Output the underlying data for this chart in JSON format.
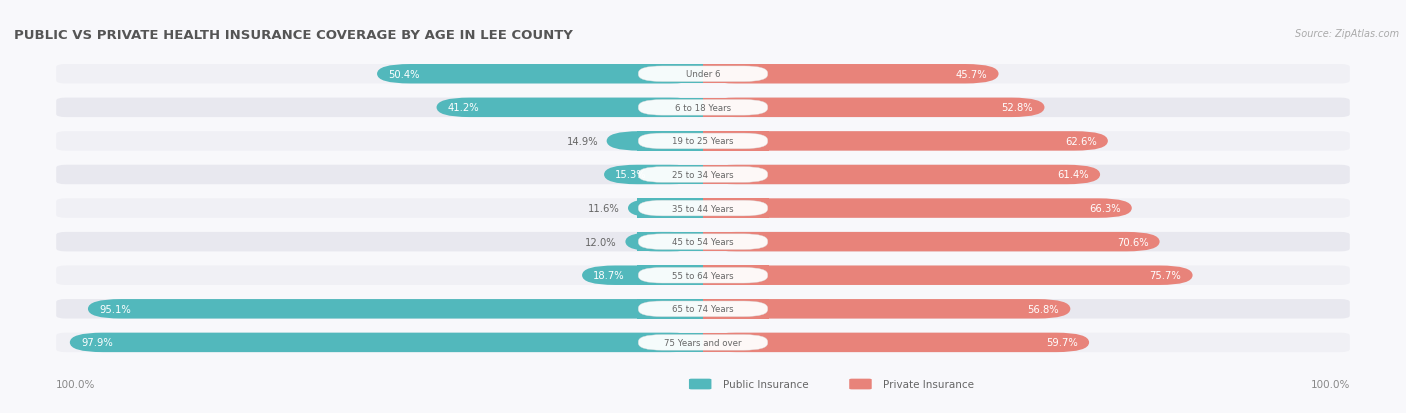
{
  "title": "PUBLIC VS PRIVATE HEALTH INSURANCE COVERAGE BY AGE IN LEE COUNTY",
  "source": "Source: ZipAtlas.com",
  "categories": [
    "Under 6",
    "6 to 18 Years",
    "19 to 25 Years",
    "25 to 34 Years",
    "35 to 44 Years",
    "45 to 54 Years",
    "55 to 64 Years",
    "65 to 74 Years",
    "75 Years and over"
  ],
  "public_values": [
    50.4,
    41.2,
    14.9,
    15.3,
    11.6,
    12.0,
    18.7,
    95.1,
    97.9
  ],
  "private_values": [
    45.7,
    52.8,
    62.6,
    61.4,
    66.3,
    70.6,
    75.7,
    56.8,
    59.7
  ],
  "public_color": "#52b8bc",
  "private_color": "#e8837a",
  "title_color": "#555555",
  "source_color": "#aaaaaa",
  "footer_label_color": "#888888",
  "max_value": 100.0,
  "legend_public": "Public Insurance",
  "legend_private": "Private Insurance",
  "bg_colors": [
    "#f0f0f5",
    "#e8e8ef",
    "#f0f0f5",
    "#e8e8ef",
    "#f0f0f5",
    "#e8e8ef",
    "#f0f0f5",
    "#e8e8ef",
    "#f0f0f5"
  ]
}
